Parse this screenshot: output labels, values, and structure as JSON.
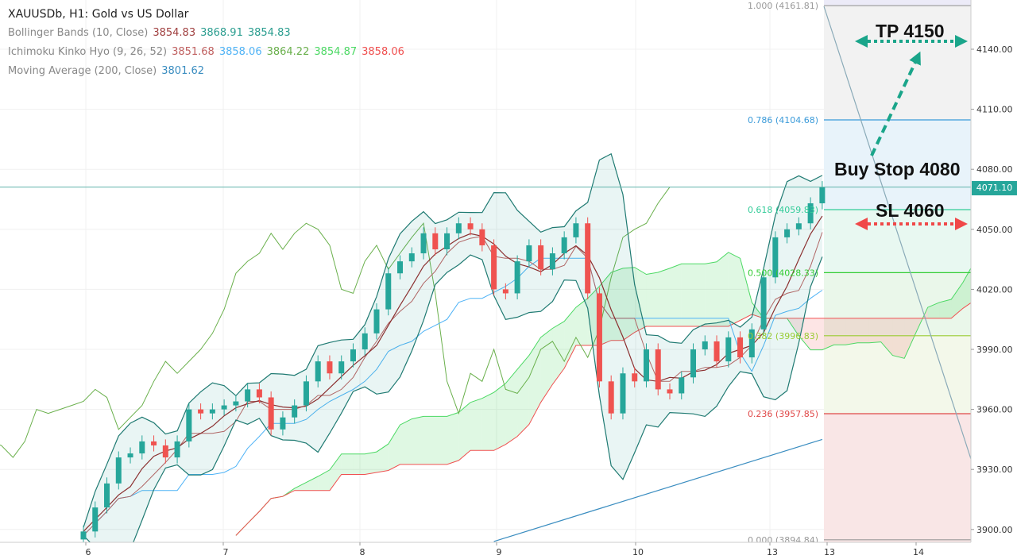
{
  "header": {
    "title": "XAUUSDb, H1: Gold vs US Dollar",
    "indicators": [
      {
        "label": "Bollinger Bands (10, Close)",
        "values": [
          "3854.83",
          "3868.91",
          "3854.83"
        ],
        "colors": [
          "#a04040",
          "#2a9d8f",
          "#2a9d8f"
        ]
      },
      {
        "label": "Ichimoku Kinko Hyo (9, 26, 52)",
        "values": [
          "3851.68",
          "3858.06",
          "3864.22",
          "3854.87",
          "3858.06"
        ],
        "colors": [
          "#c06060",
          "#4fb3f6",
          "#6ab04c",
          "#4cd964",
          "#f05050"
        ]
      },
      {
        "label": "Moving Average (200, Close)",
        "values": [
          "3801.62"
        ],
        "colors": [
          "#3a8dc0"
        ]
      }
    ]
  },
  "annotations": {
    "tp": "TP 4150",
    "buy_stop": "Buy Stop 4080",
    "sl": "SL 4060"
  },
  "last_price": "4071.10",
  "colors": {
    "up": "#26a69a",
    "down": "#ef5350",
    "tp_arrow": "#1aa58a",
    "sl_arrow": "#f04848"
  },
  "chart_data": {
    "type": "candlestick",
    "instrument": "XAUUSDb",
    "timeframe": "H1",
    "x_ticks": [
      "6",
      "7",
      "8",
      "9",
      "10",
      "13",
      "13",
      "14"
    ],
    "y_ticks": [
      "3900.00",
      "3930.00",
      "3960.00",
      "3990.00",
      "4020.00",
      "4050.00",
      "4080.00",
      "4110.00",
      "4140.00"
    ],
    "ylim": [
      3893,
      4165
    ],
    "grid": true,
    "closes": [
      3899,
      3911,
      3923,
      3936,
      3938,
      3944,
      3942,
      3936,
      3944,
      3960,
      3958,
      3960,
      3962,
      3964,
      3970,
      3966,
      3950,
      3956,
      3962,
      3974,
      3984,
      3978,
      3984,
      3990,
      3998,
      4010,
      4028,
      4034,
      4038,
      4048,
      4040,
      4048,
      4053,
      4050,
      4042,
      4020,
      4018,
      4034,
      4042,
      4030,
      4038,
      4046,
      4053,
      4018,
      3974,
      3958,
      3978,
      3974,
      3990,
      3970,
      3968,
      3976,
      3990,
      3994,
      3984,
      3996,
      3986,
      4000,
      4026,
      4046,
      4050,
      4053,
      4063,
      4071.1
    ],
    "moving_average_200": [
      [
        3894,
        35
      ],
      [
        3945,
        63
      ]
    ],
    "fibonacci": [
      {
        "level": "1.000",
        "price": 4161.81,
        "color": "#999999"
      },
      {
        "level": "0.786",
        "price": 4104.68,
        "color": "#3a9ad9"
      },
      {
        "level": "0.618",
        "price": 4059.83,
        "color": "#33cc99"
      },
      {
        "level": "0.500",
        "price": 4028.33,
        "color": "#33cc33"
      },
      {
        "level": "0.382",
        "price": 3996.83,
        "color": "#99cc33"
      },
      {
        "level": "0.236",
        "price": 3957.85,
        "color": "#e04848"
      },
      {
        "level": "0.000",
        "price": 3894.84,
        "color": "#999999"
      }
    ],
    "levels": {
      "tp": 4150,
      "buy_stop": 4080,
      "sl": 4060
    }
  }
}
